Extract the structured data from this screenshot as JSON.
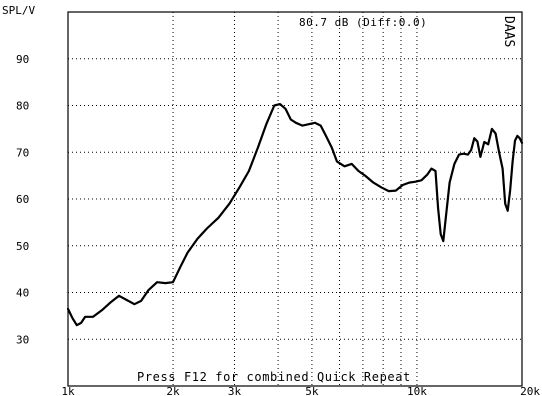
{
  "chart_data": {
    "type": "line",
    "ylabel": "SPL/V",
    "readout": "80.7 dB (Diff:0.0)",
    "side_badge": "DAAS",
    "prompt": "Press F12 for combined Quick Repeat",
    "x_scale": "log",
    "xlim": [
      1000,
      20000
    ],
    "ylim": [
      20,
      100
    ],
    "grid": true,
    "x_ticks": [
      {
        "value": 1000,
        "label": "1k"
      },
      {
        "value": 2000,
        "label": "2k"
      },
      {
        "value": 3000,
        "label": "3k"
      },
      {
        "value": 5000,
        "label": "5k"
      },
      {
        "value": 10000,
        "label": "10k"
      },
      {
        "value": 20000,
        "label": "20k"
      }
    ],
    "y_ticks": [
      {
        "value": 30,
        "label": "30"
      },
      {
        "value": 40,
        "label": "40"
      },
      {
        "value": 50,
        "label": "50"
      },
      {
        "value": 60,
        "label": "60"
      },
      {
        "value": 70,
        "label": "70"
      },
      {
        "value": 80,
        "label": "80"
      },
      {
        "value": 90,
        "label": "90"
      }
    ],
    "x_gridlines": [
      1000,
      2000,
      3000,
      4000,
      5000,
      6000,
      7000,
      8000,
      9000,
      10000,
      20000
    ],
    "y_gridlines": [
      30,
      40,
      50,
      60,
      70,
      80,
      90
    ],
    "series": [
      {
        "x": [
          1000,
          1030,
          1060,
          1090,
          1120,
          1180,
          1250,
          1320,
          1400,
          1480,
          1550,
          1620,
          1700,
          1800,
          1900,
          2000,
          2100,
          2200,
          2350,
          2500,
          2700,
          2900,
          3100,
          3300,
          3500,
          3700,
          3900,
          4050,
          4200,
          4350,
          4500,
          4700,
          4900,
          5100,
          5300,
          5500,
          5700,
          5900,
          6200,
          6500,
          6800,
          7100,
          7500,
          7900,
          8300,
          8700,
          9100,
          9500,
          9900,
          10300,
          10700,
          11000,
          11300,
          11500,
          11700,
          11900,
          12100,
          12400,
          12800,
          13200,
          13600,
          14000,
          14300,
          14600,
          14900,
          15200,
          15600,
          16000,
          16400,
          16800,
          17200,
          17600,
          17900,
          18200,
          18500,
          18800,
          19100,
          19400,
          19700,
          20000
        ],
        "y": [
          36.5,
          34.5,
          33.0,
          33.5,
          34.8,
          34.8,
          36.2,
          37.8,
          39.3,
          38.3,
          37.5,
          38.2,
          40.5,
          42.2,
          42.0,
          42.2,
          45.5,
          48.5,
          51.5,
          53.7,
          56.0,
          59.0,
          62.5,
          66.0,
          71.0,
          76.0,
          80.0,
          80.3,
          79.3,
          77.0,
          76.3,
          75.7,
          76.0,
          76.3,
          75.7,
          73.3,
          71.0,
          68.0,
          67.0,
          67.5,
          66.0,
          65.0,
          63.5,
          62.5,
          61.7,
          61.8,
          63.0,
          63.5,
          63.7,
          64.0,
          65.2,
          66.5,
          66.0,
          58.0,
          52.5,
          51.0,
          56.0,
          63.5,
          67.5,
          69.5,
          69.7,
          69.5,
          70.5,
          73.0,
          72.3,
          69.0,
          72.2,
          71.7,
          75.0,
          74.0,
          70.0,
          66.5,
          59.0,
          57.5,
          62.0,
          68.0,
          72.5,
          73.5,
          73.0,
          72.0
        ]
      }
    ]
  }
}
